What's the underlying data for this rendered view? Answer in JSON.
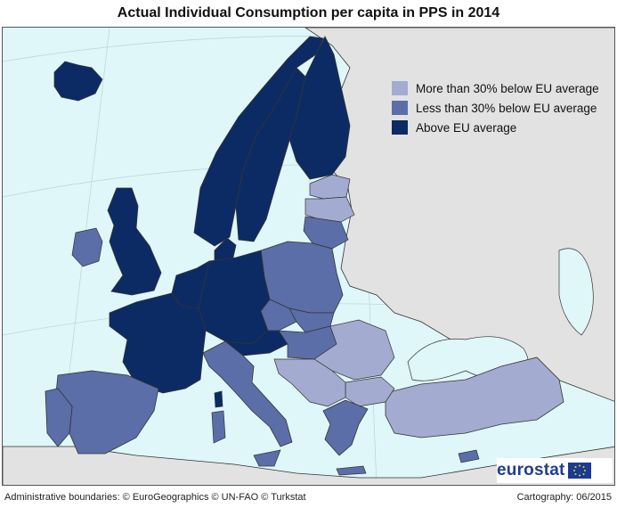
{
  "title": "Actual Individual Consumption per capita in PPS in 2014",
  "colors": {
    "sea": "#dff7f8",
    "non_eu": "#e2e2e2",
    "more_than_30_below": "#a3abd1",
    "less_than_30_below": "#5b6ea8",
    "above_avg": "#0c2b64",
    "border": "#333333"
  },
  "legend": [
    {
      "label": "More than 30% below EU average",
      "color": "#a3abd1"
    },
    {
      "label": "Less than 30% below EU average",
      "color": "#5b6ea8"
    },
    {
      "label": "Above EU average",
      "color": "#0c2b64"
    }
  ],
  "logo": {
    "text": "eurostat"
  },
  "footer": {
    "left": "Administrative boundaries: © EuroGeographics © UN-FAO © Turkstat",
    "right": "Cartography: 06/2015"
  }
}
